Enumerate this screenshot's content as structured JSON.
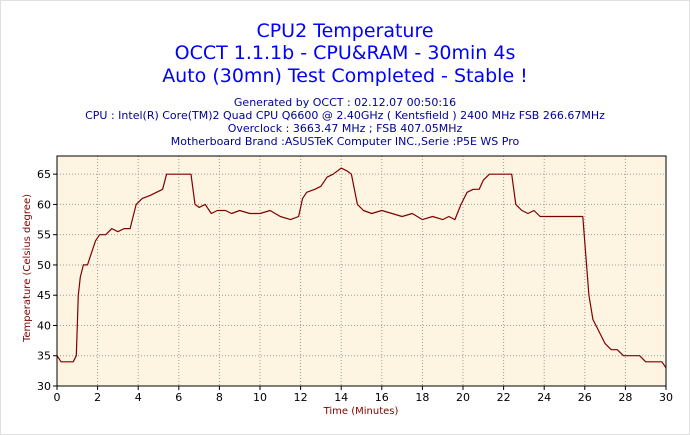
{
  "titles": [
    "CPU2 Temperature",
    "OCCT 1.1.1b - CPU&RAM - 30min 4s",
    "Auto (30mn) Test Completed - Stable !"
  ],
  "info_lines": [
    "Generated by OCCT : 02.12.07 00:50:16",
    "CPU : Intel(R) Core(TM)2 Quad CPU Q6600 @ 2.40GHz ( Kentsfield ) 2400 MHz FSB 266.67MHz",
    "Overclock : 3663.47 MHz ; FSB 407.05MHz",
    "Motherboard Brand :ASUSTeK Computer INC.,Serie :P5E WS Pro"
  ],
  "colors": {
    "title": "#0000ff",
    "info": "#000099",
    "plot_background": "#fdf5e2",
    "series": "#800000",
    "grid": "#9a9a9a"
  },
  "chart_data": {
    "type": "line",
    "title": "CPU2 Temperature",
    "xlabel": "Time (Minutes)",
    "ylabel": "Temperature (Celsius degree)",
    "xlim": [
      0,
      30
    ],
    "ylim": [
      30,
      68
    ],
    "x_ticks": [
      0,
      2,
      4,
      6,
      8,
      10,
      12,
      14,
      16,
      18,
      20,
      22,
      24,
      26,
      28,
      30
    ],
    "y_ticks": [
      30,
      35,
      40,
      45,
      50,
      55,
      60,
      65
    ],
    "grid": true,
    "series": [
      {
        "points": [
          [
            0,
            35
          ],
          [
            0.2,
            34
          ],
          [
            0.8,
            34
          ],
          [
            0.95,
            35
          ],
          [
            1.05,
            45
          ],
          [
            1.15,
            48
          ],
          [
            1.3,
            50
          ],
          [
            1.5,
            50
          ],
          [
            1.7,
            52
          ],
          [
            1.9,
            54
          ],
          [
            2.1,
            55
          ],
          [
            2.4,
            55
          ],
          [
            2.7,
            56
          ],
          [
            3.0,
            55.5
          ],
          [
            3.3,
            56
          ],
          [
            3.6,
            56
          ],
          [
            3.75,
            58
          ],
          [
            3.9,
            60
          ],
          [
            4.2,
            61
          ],
          [
            4.6,
            61.5
          ],
          [
            4.9,
            62
          ],
          [
            5.2,
            62.5
          ],
          [
            5.4,
            65
          ],
          [
            5.7,
            65
          ],
          [
            6.0,
            65
          ],
          [
            6.6,
            65
          ],
          [
            6.8,
            60
          ],
          [
            7.0,
            59.5
          ],
          [
            7.3,
            60
          ],
          [
            7.6,
            58.5
          ],
          [
            7.9,
            59
          ],
          [
            8.3,
            59
          ],
          [
            8.6,
            58.5
          ],
          [
            9.0,
            59
          ],
          [
            9.5,
            58.5
          ],
          [
            10.0,
            58.5
          ],
          [
            10.5,
            59
          ],
          [
            11.0,
            58
          ],
          [
            11.5,
            57.5
          ],
          [
            11.9,
            58
          ],
          [
            12.1,
            61
          ],
          [
            12.3,
            62
          ],
          [
            12.7,
            62.5
          ],
          [
            13.0,
            63
          ],
          [
            13.3,
            64.5
          ],
          [
            13.6,
            65
          ],
          [
            14.0,
            66
          ],
          [
            14.3,
            65.5
          ],
          [
            14.5,
            65
          ],
          [
            14.8,
            60
          ],
          [
            15.1,
            59
          ],
          [
            15.5,
            58.5
          ],
          [
            16.0,
            59
          ],
          [
            16.5,
            58.5
          ],
          [
            17.0,
            58
          ],
          [
            17.5,
            58.5
          ],
          [
            18.0,
            57.5
          ],
          [
            18.5,
            58
          ],
          [
            19.0,
            57.5
          ],
          [
            19.3,
            58
          ],
          [
            19.6,
            57.5
          ],
          [
            19.9,
            60
          ],
          [
            20.2,
            62
          ],
          [
            20.5,
            62.5
          ],
          [
            20.8,
            62.5
          ],
          [
            21.0,
            64
          ],
          [
            21.3,
            65
          ],
          [
            21.6,
            65
          ],
          [
            22.0,
            65
          ],
          [
            22.4,
            65
          ],
          [
            22.6,
            60
          ],
          [
            22.9,
            59
          ],
          [
            23.2,
            58.5
          ],
          [
            23.5,
            59
          ],
          [
            23.8,
            58
          ],
          [
            24.2,
            58
          ],
          [
            24.6,
            58
          ],
          [
            25.0,
            58
          ],
          [
            25.5,
            58
          ],
          [
            25.9,
            58
          ],
          [
            26.2,
            45
          ],
          [
            26.4,
            41
          ],
          [
            26.7,
            39
          ],
          [
            27.0,
            37
          ],
          [
            27.3,
            36
          ],
          [
            27.6,
            36
          ],
          [
            27.9,
            35
          ],
          [
            28.3,
            35
          ],
          [
            28.7,
            35
          ],
          [
            29.0,
            34
          ],
          [
            29.4,
            34
          ],
          [
            29.8,
            34
          ],
          [
            30.0,
            33
          ]
        ]
      }
    ]
  }
}
